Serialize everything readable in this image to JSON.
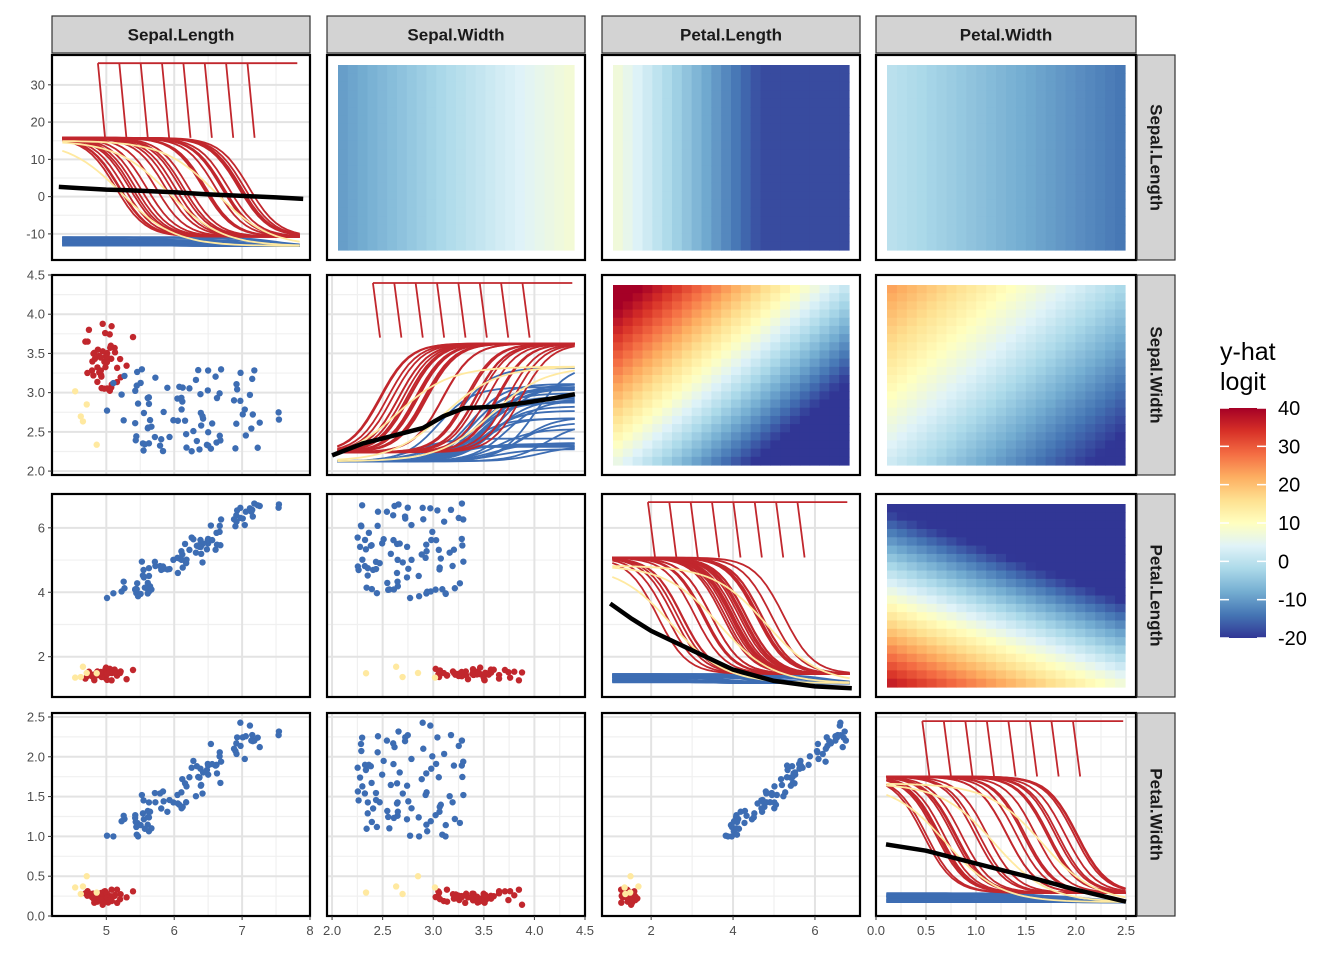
{
  "chart_data": {
    "type": "scatter",
    "figure": "pairwise interaction / ICE matrix",
    "variables": [
      "Sepal.Length",
      "Sepal.Width",
      "Petal.Length",
      "Petal.Width"
    ],
    "col_strips": [
      "Sepal.Length",
      "Sepal.Width",
      "Petal.Length",
      "Petal.Width"
    ],
    "row_strips": [
      "Sepal.Length",
      "Sepal.Width",
      "Petal.Length",
      "Petal.Width"
    ],
    "x_ranges": [
      [
        4.2,
        8.0
      ],
      [
        1.95,
        4.5
      ],
      [
        0.8,
        7.1
      ],
      [
        0.0,
        2.6
      ]
    ],
    "y_ranges": [
      [
        -17,
        38
      ],
      [
        1.95,
        4.5
      ],
      [
        0.75,
        7.05
      ],
      [
        0.0,
        2.55
      ]
    ],
    "x_ticks": [
      {
        "values": [
          5,
          6,
          7,
          8
        ],
        "labels": [
          "5",
          "6",
          "7",
          "8"
        ]
      },
      {
        "values": [
          2.0,
          2.5,
          3.0,
          3.5,
          4.0,
          4.5
        ],
        "labels": [
          "2.0",
          "2.5",
          "3.0",
          "3.5",
          "4.0",
          "4.5"
        ]
      },
      {
        "values": [
          2,
          4,
          6
        ],
        "labels": [
          "2",
          "4",
          "6"
        ]
      },
      {
        "values": [
          0.0,
          0.5,
          1.0,
          1.5,
          2.0,
          2.5
        ],
        "labels": [
          "0.0",
          "0.5",
          "1.0",
          "1.5",
          "2.0",
          "2.5"
        ]
      }
    ],
    "y_ticks": [
      {
        "values": [
          -10,
          0,
          10,
          20,
          30
        ],
        "labels": [
          "-10",
          "0",
          "10",
          "20",
          "30"
        ]
      },
      {
        "values": [
          2.0,
          2.5,
          3.0,
          3.5,
          4.0,
          4.5
        ],
        "labels": [
          "2.0",
          "2.5",
          "3.0",
          "3.5",
          "4.0",
          "4.5"
        ]
      },
      {
        "values": [
          2,
          4,
          6
        ],
        "labels": [
          "2",
          "4",
          "6"
        ]
      },
      {
        "values": [
          0.0,
          0.5,
          1.0,
          1.5,
          2.0,
          2.5
        ],
        "labels": [
          "0.0",
          "0.5",
          "1.0",
          "1.5",
          "2.0",
          "2.5"
        ]
      }
    ],
    "diagonal_pdp": [
      {
        "x": [
          4.3,
          4.6,
          5.0,
          5.5,
          6.0,
          6.5,
          7.0,
          7.5,
          7.9
        ],
        "y": [
          2.6,
          2.3,
          1.9,
          1.6,
          1.2,
          0.6,
          0.2,
          -0.2,
          -0.6
        ]
      },
      {
        "x": [
          2.0,
          2.3,
          2.6,
          2.9,
          3.1,
          3.3,
          3.6,
          3.9,
          4.2,
          4.4
        ],
        "y": [
          2.2,
          2.35,
          2.45,
          2.55,
          2.7,
          2.8,
          2.82,
          2.87,
          2.93,
          2.98
        ]
      },
      {
        "x": [
          1.0,
          1.5,
          2.0,
          3.0,
          4.0,
          5.0,
          6.0,
          6.9
        ],
        "y": [
          3.65,
          3.2,
          2.8,
          2.2,
          1.6,
          1.25,
          1.08,
          1.02
        ]
      },
      {
        "x": [
          0.1,
          0.5,
          1.0,
          1.5,
          2.0,
          2.5
        ],
        "y": [
          0.9,
          0.82,
          0.66,
          0.5,
          0.33,
          0.18
        ]
      }
    ],
    "heatmap_value_range": [
      -20,
      40
    ],
    "legend": {
      "title_line1": "y-hat",
      "title_line2": "logit",
      "ticks": [
        40,
        30,
        20,
        10,
        0,
        -10,
        -20
      ],
      "tick_labels": [
        "40",
        "30",
        "20",
        "10",
        "0",
        "-10",
        "-20"
      ],
      "colors": [
        "#313695",
        "#4575b4",
        "#74add1",
        "#abd9e9",
        "#e0f3f8",
        "#ffffbf",
        "#fee090",
        "#fdae61",
        "#f46d43",
        "#d73027",
        "#a50026"
      ]
    },
    "class_colors": {
      "blue": "#3d6db3",
      "red": "#c1272d",
      "yellow": "#ffe9a0",
      "black": "#000000"
    }
  }
}
